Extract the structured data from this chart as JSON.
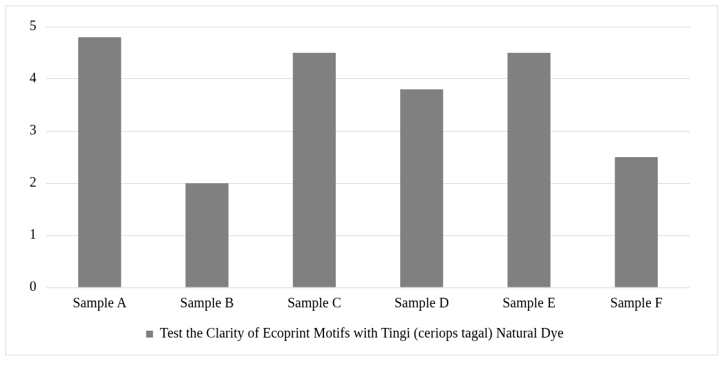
{
  "chart_data": {
    "type": "bar",
    "categories": [
      "Sample A",
      "Sample B",
      "Sample C",
      "Sample D",
      "Sample E",
      "Sample F"
    ],
    "series": [
      {
        "name": "Test the Clarity of Ecoprint Motifs with Tingi (ceriops tagal) Natural Dye",
        "color": "#808080",
        "values": [
          4.8,
          2,
          4.5,
          3.8,
          4.5,
          2.5
        ]
      }
    ],
    "ylim": [
      0,
      5
    ],
    "yticks": [
      0,
      1,
      2,
      3,
      4,
      5
    ],
    "grid": "y",
    "legend": "bottom"
  }
}
